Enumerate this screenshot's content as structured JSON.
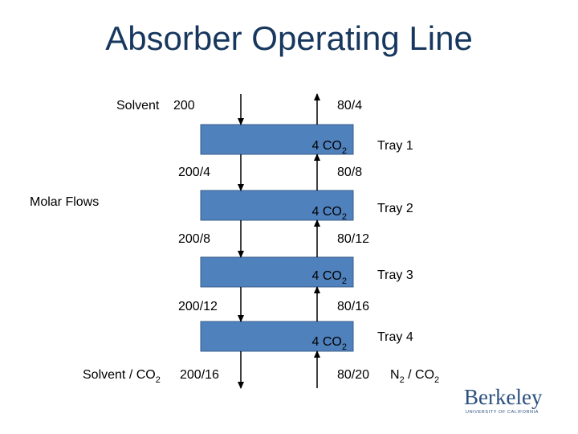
{
  "title": "Absorber Operating Line",
  "side_label": "Molar Flows",
  "trays": [
    {
      "label": "Tray 1",
      "transfer": "4 CO",
      "transfer_sub": "2"
    },
    {
      "label": "Tray 2",
      "transfer": "4 CO",
      "transfer_sub": "2"
    },
    {
      "label": "Tray 3",
      "transfer": "4 CO",
      "transfer_sub": "2"
    },
    {
      "label": "Tray 4",
      "transfer": "4 CO",
      "transfer_sub": "2"
    }
  ],
  "liquid_flows": [
    {
      "name": "Solvent",
      "value": "200"
    },
    {
      "value": "200/4"
    },
    {
      "value": "200/8"
    },
    {
      "value": "200/12"
    },
    {
      "name": "Solvent / CO",
      "name_sub": "2",
      "value": "200/16"
    }
  ],
  "gas_flows": [
    "80/4",
    "80/8",
    "80/12",
    "80/16",
    "80/20"
  ],
  "gas_inlet_label": [
    "N",
    "2",
    " / CO",
    "2"
  ],
  "logo": {
    "name": "Berkeley",
    "tagline": "UNIVERSITY OF CALIFORNIA"
  }
}
